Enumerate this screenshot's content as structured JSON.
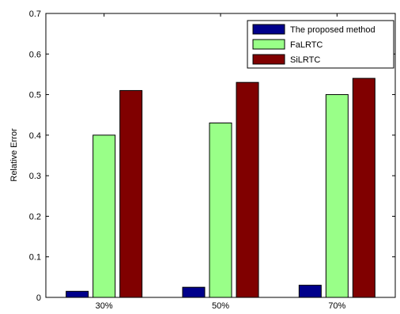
{
  "chart_data": {
    "type": "bar",
    "title": "",
    "xlabel": "",
    "ylabel": "Relative Error",
    "categories": [
      "30%",
      "50%",
      "70%"
    ],
    "series": [
      {
        "name": "The proposed method",
        "values": [
          0.015,
          0.025,
          0.03
        ],
        "color": "#00008b"
      },
      {
        "name": "FaLRTC",
        "values": [
          0.4,
          0.43,
          0.5
        ],
        "color": "#99ff88"
      },
      {
        "name": "SiLRTC",
        "values": [
          0.51,
          0.53,
          0.54
        ],
        "color": "#800000"
      }
    ],
    "ylim": [
      0,
      0.7
    ],
    "yticks": [
      "0",
      "0.1",
      "0.2",
      "0.3",
      "0.4",
      "0.5",
      "0.6",
      "0.7"
    ],
    "grid": false,
    "legend_position": "top-right"
  }
}
